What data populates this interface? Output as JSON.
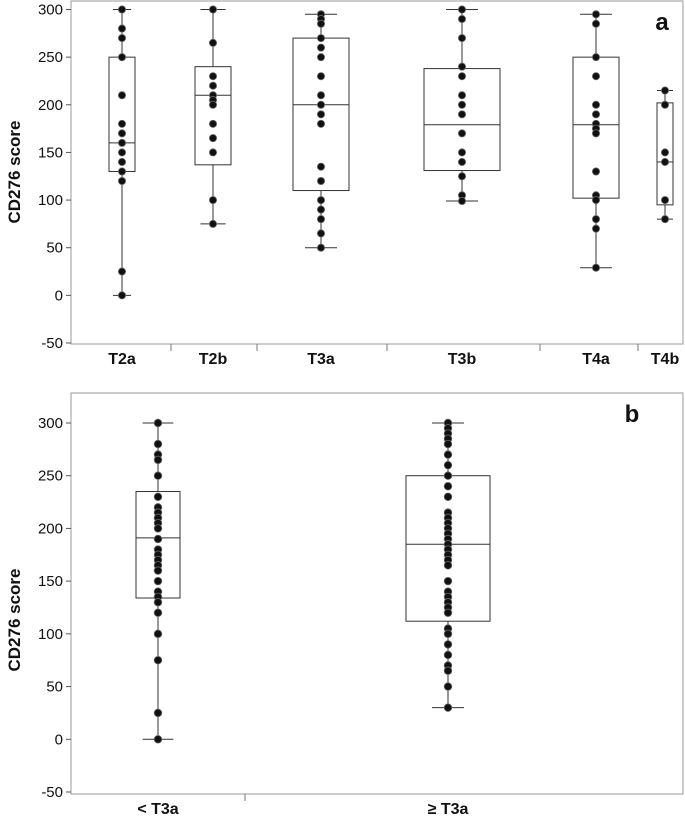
{
  "chart_data": [
    {
      "panel": "a",
      "type": "box",
      "ylabel": "CD276 score",
      "ylim": [
        -50,
        300
      ],
      "yticks": [
        -50,
        0,
        50,
        100,
        150,
        200,
        250,
        300
      ],
      "categories": [
        "T2a",
        "T2b",
        "T3a",
        "T3b",
        "T4a",
        "T4b"
      ],
      "boxes": [
        {
          "q1": 130,
          "median": 160,
          "q3": 250,
          "low": 0,
          "high": 300,
          "points": [
            300,
            280,
            270,
            250,
            210,
            180,
            170,
            160,
            150,
            140,
            130,
            120,
            25,
            0
          ]
        },
        {
          "q1": 137,
          "median": 210,
          "q3": 240,
          "low": 75,
          "high": 300,
          "points": [
            300,
            265,
            230,
            220,
            210,
            205,
            200,
            180,
            165,
            150,
            100,
            75
          ]
        },
        {
          "q1": 110,
          "median": 200,
          "q3": 270,
          "low": 50,
          "high": 295,
          "points": [
            295,
            290,
            285,
            270,
            260,
            250,
            230,
            210,
            200,
            190,
            180,
            135,
            120,
            100,
            90,
            80,
            65,
            50
          ]
        },
        {
          "q1": 131,
          "median": 179,
          "q3": 238,
          "low": 99,
          "high": 300,
          "points": [
            300,
            290,
            270,
            240,
            230,
            210,
            200,
            190,
            170,
            150,
            140,
            125,
            105,
            99
          ]
        },
        {
          "q1": 102,
          "median": 179,
          "q3": 250,
          "low": 29,
          "high": 295,
          "points": [
            295,
            285,
            250,
            230,
            200,
            190,
            180,
            175,
            170,
            130,
            105,
            100,
            80,
            70,
            29
          ]
        },
        {
          "q1": 95,
          "median": 140,
          "q3": 202,
          "low": 80,
          "high": 215,
          "points": [
            215,
            200,
            150,
            140,
            100,
            80
          ]
        }
      ],
      "panel_label": "a"
    },
    {
      "panel": "b",
      "type": "box",
      "ylabel": "CD276 score",
      "ylim": [
        -50,
        300
      ],
      "yticks": [
        -50,
        0,
        50,
        100,
        150,
        200,
        250,
        300
      ],
      "categories": [
        "< T3a",
        "≥ T3a"
      ],
      "boxes": [
        {
          "q1": 134,
          "median": 191,
          "q3": 235,
          "low": 0,
          "high": 300,
          "points": [
            300,
            280,
            270,
            265,
            250,
            230,
            220,
            215,
            210,
            205,
            200,
            190,
            180,
            175,
            170,
            165,
            160,
            150,
            140,
            135,
            130,
            120,
            100,
            75,
            25,
            0
          ]
        },
        {
          "q1": 112,
          "median": 185,
          "q3": 250,
          "low": 30,
          "high": 300,
          "points": [
            300,
            295,
            290,
            285,
            280,
            270,
            260,
            250,
            240,
            230,
            215,
            210,
            205,
            200,
            195,
            190,
            185,
            180,
            175,
            170,
            165,
            150,
            140,
            135,
            130,
            125,
            120,
            105,
            100,
            90,
            80,
            70,
            65,
            50,
            30
          ]
        }
      ],
      "panel_label": "b"
    }
  ]
}
